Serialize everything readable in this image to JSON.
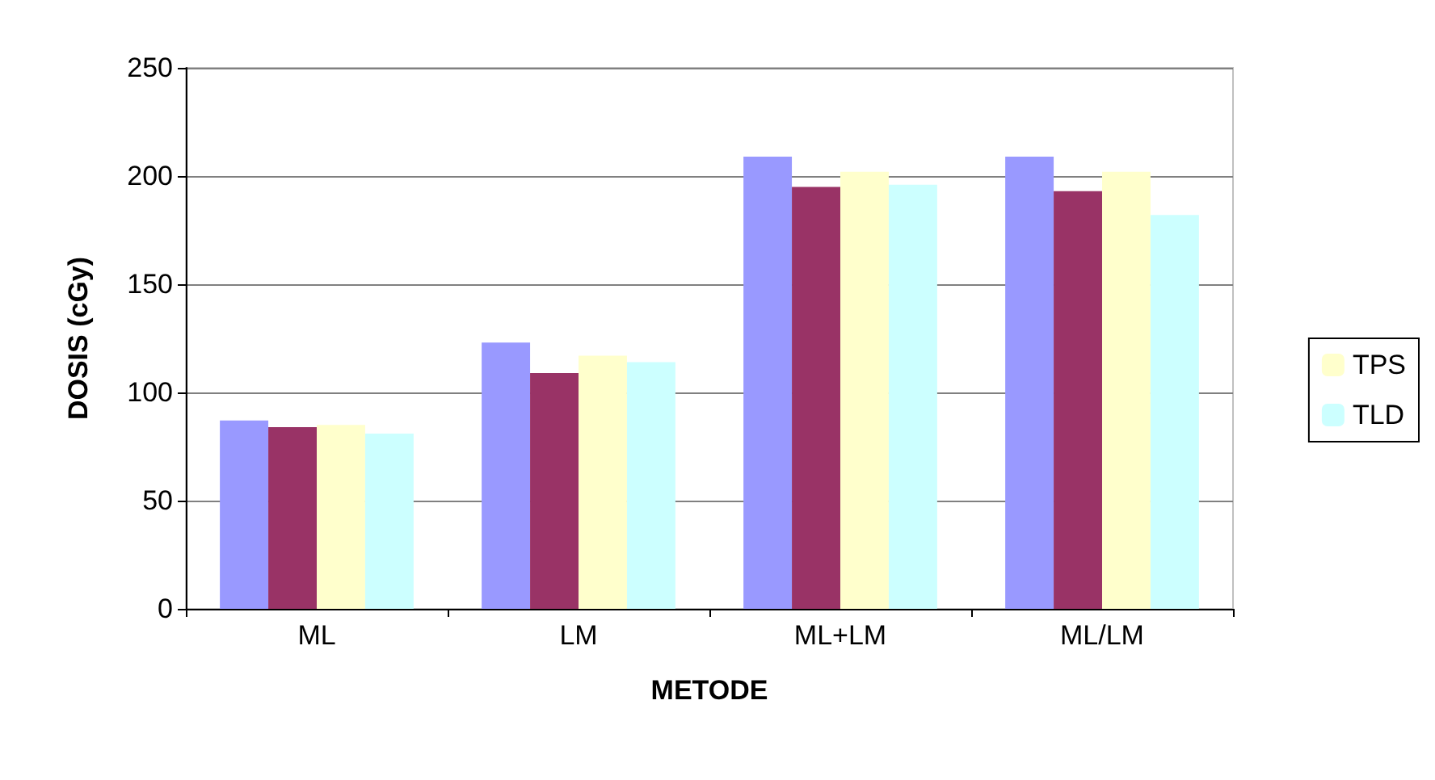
{
  "chart_data": {
    "type": "bar",
    "xlabel": "METODE",
    "ylabel": "DOSIS (cGy)",
    "categories": [
      "ML",
      "LM",
      "ML+LM",
      "ML/LM"
    ],
    "series": [
      {
        "color": "#9999ff",
        "values": [
          87,
          123,
          209,
          209
        ]
      },
      {
        "color": "#993366",
        "values": [
          84,
          109,
          195,
          193
        ]
      },
      {
        "name": "TPS",
        "color": "#ffffcc",
        "values": [
          85,
          117,
          202,
          202
        ]
      },
      {
        "name": "TLD",
        "color": "#ccffff",
        "values": [
          81,
          114,
          196,
          182
        ]
      }
    ],
    "ylim": [
      0,
      250
    ],
    "yticks": [
      0,
      50,
      100,
      150,
      200,
      250
    ],
    "grid": "y",
    "legend": "right"
  }
}
